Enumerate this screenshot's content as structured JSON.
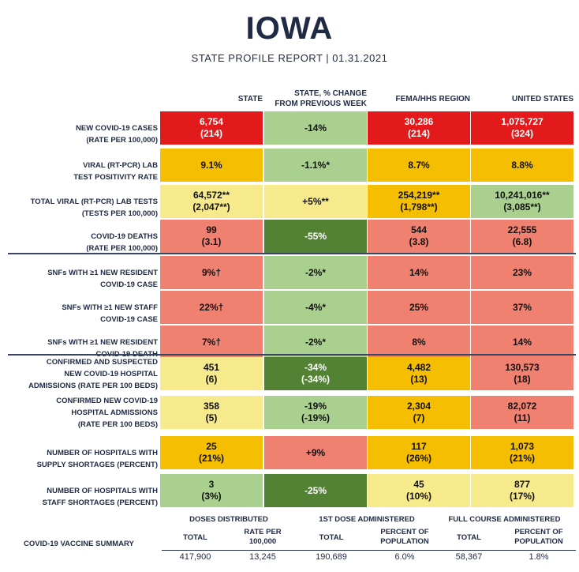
{
  "header": {
    "title": "IOWA",
    "subtitle": "STATE PROFILE REPORT | 01.31.2021"
  },
  "columns": [
    "STATE",
    "STATE, % CHANGE\nFROM PREVIOUS WEEK",
    "FEMA/HHS REGION",
    "UNITED STATES"
  ],
  "colors": {
    "red": "#e31a1c",
    "salmon": "#f08070",
    "orange": "#f5be00",
    "yellow": "#f7ea8d",
    "lightgreen": "#a9d08e",
    "darkgreen": "#548235"
  },
  "rows": [
    {
      "label": "NEW COVID-19 CASES\n(RATE PER 100,000)",
      "cells": [
        {
          "text": "6,754\n(214)",
          "color": "red"
        },
        {
          "text": "-14%",
          "color": "lightgreen"
        },
        {
          "text": "30,286\n(214)",
          "color": "red"
        },
        {
          "text": "1,075,727\n(324)",
          "color": "red"
        }
      ]
    },
    {
      "label": "VIRAL (RT-PCR) LAB\nTEST POSITIVITY RATE",
      "cells": [
        {
          "text": "9.1%",
          "color": "orange"
        },
        {
          "text": "-1.1%*",
          "color": "lightgreen"
        },
        {
          "text": "8.7%",
          "color": "orange"
        },
        {
          "text": "8.8%",
          "color": "orange"
        }
      ]
    },
    {
      "label": "TOTAL VIRAL (RT-PCR) LAB TESTS\n(TESTS PER 100,000)",
      "cells": [
        {
          "text": "64,572**\n(2,047**)",
          "color": "yellow"
        },
        {
          "text": "+5%**",
          "color": "yellow"
        },
        {
          "text": "254,219**\n(1,798**)",
          "color": "orange"
        },
        {
          "text": "10,241,016**\n(3,085**)",
          "color": "lightgreen"
        }
      ]
    },
    {
      "label": "COVID-19 DEATHS\n(RATE PER 100,000)",
      "cells": [
        {
          "text": "99\n(3.1)",
          "color": "salmon"
        },
        {
          "text": "-55%",
          "color": "darkgreen"
        },
        {
          "text": "544\n(3.8)",
          "color": "salmon"
        },
        {
          "text": "22,555\n(6.8)",
          "color": "salmon"
        }
      ]
    },
    {
      "label": "SNFs WITH ≥1 NEW RESIDENT\nCOVID-19 CASE",
      "cells": [
        {
          "text": "9%†",
          "color": "salmon"
        },
        {
          "text": "-2%*",
          "color": "lightgreen"
        },
        {
          "text": "14%",
          "color": "salmon"
        },
        {
          "text": "23%",
          "color": "salmon"
        }
      ]
    },
    {
      "label": "SNFs WITH ≥1 NEW STAFF\nCOVID-19 CASE",
      "cells": [
        {
          "text": "22%†",
          "color": "salmon"
        },
        {
          "text": "-4%*",
          "color": "lightgreen"
        },
        {
          "text": "25%",
          "color": "salmon"
        },
        {
          "text": "37%",
          "color": "salmon"
        }
      ]
    },
    {
      "label": "SNFs WITH ≥1 NEW RESIDENT\nCOVID-19 DEATH",
      "cells": [
        {
          "text": "7%†",
          "color": "salmon"
        },
        {
          "text": "-2%*",
          "color": "lightgreen"
        },
        {
          "text": "8%",
          "color": "salmon"
        },
        {
          "text": "14%",
          "color": "salmon"
        }
      ]
    },
    {
      "label": "CONFIRMED AND SUSPECTED\nNEW COVID-19 HOSPITAL\nADMISSIONS (RATE PER 100 BEDS)",
      "cells": [
        {
          "text": "451\n(6)",
          "color": "yellow"
        },
        {
          "text": "-34%\n(-34%)",
          "color": "darkgreen"
        },
        {
          "text": "4,482\n(13)",
          "color": "orange"
        },
        {
          "text": "130,573\n(18)",
          "color": "salmon"
        }
      ]
    },
    {
      "label": "CONFIRMED NEW COVID-19\nHOSPITAL ADMISSIONS\n(RATE PER 100 BEDS)",
      "cells": [
        {
          "text": "358\n(5)",
          "color": "yellow"
        },
        {
          "text": "-19%\n(-19%)",
          "color": "lightgreen"
        },
        {
          "text": "2,304\n(7)",
          "color": "orange"
        },
        {
          "text": "82,072\n(11)",
          "color": "salmon"
        }
      ]
    },
    {
      "label": "NUMBER OF HOSPITALS WITH\nSUPPLY SHORTAGES (PERCENT)",
      "cells": [
        {
          "text": "25\n(21%)",
          "color": "orange"
        },
        {
          "text": "+9%",
          "color": "salmon"
        },
        {
          "text": "117\n(26%)",
          "color": "orange"
        },
        {
          "text": "1,073\n(21%)",
          "color": "orange"
        }
      ]
    },
    {
      "label": "NUMBER OF HOSPITALS WITH\nSTAFF SHORTAGES (PERCENT)",
      "cells": [
        {
          "text": "3\n(3%)",
          "color": "lightgreen"
        },
        {
          "text": "-25%",
          "color": "darkgreen"
        },
        {
          "text": "45\n(10%)",
          "color": "yellow"
        },
        {
          "text": "877\n(17%)",
          "color": "yellow"
        }
      ]
    }
  ],
  "vaccine": {
    "label": "COVID-19 VACCINE SUMMARY",
    "groups": [
      "DOSES DISTRIBUTED",
      "1ST DOSE ADMINISTERED",
      "FULL COURSE ADMINISTERED"
    ],
    "subheaders": [
      "TOTAL",
      "RATE PER\n100,000",
      "TOTAL",
      "PERCENT OF\nPOPULATION",
      "TOTAL",
      "PERCENT OF\nPOPULATION"
    ],
    "values": [
      "417,900",
      "13,245",
      "190,689",
      "6.0%",
      "58,367",
      "1.8%"
    ]
  }
}
